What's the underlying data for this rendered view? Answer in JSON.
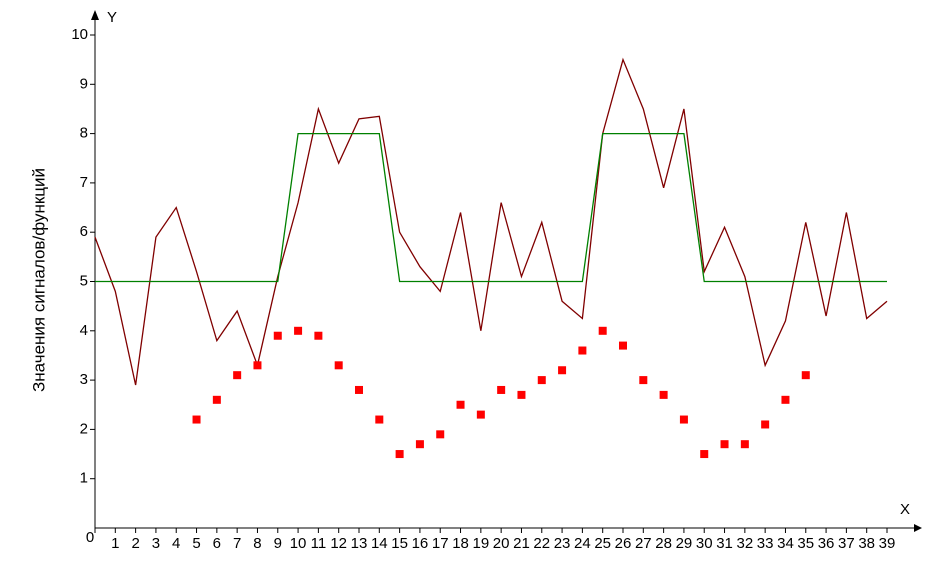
{
  "chart_data": {
    "type": "line",
    "y_label": "Значения сигналов/функций",
    "x_axis_name": "X",
    "y_axis_name": "Y",
    "x": [
      0,
      1,
      2,
      3,
      4,
      5,
      6,
      7,
      8,
      9,
      10,
      11,
      12,
      13,
      14,
      15,
      16,
      17,
      18,
      19,
      20,
      21,
      22,
      23,
      24,
      25,
      26,
      27,
      28,
      29,
      30,
      31,
      32,
      33,
      34,
      35,
      36,
      37,
      38,
      39
    ],
    "series": [
      {
        "style": "line",
        "color": "#800000",
        "values": [
          5.9,
          4.8,
          2.9,
          5.9,
          6.5,
          5.2,
          3.8,
          4.4,
          3.3,
          5.1,
          6.6,
          8.5,
          7.4,
          8.3,
          8.35,
          6.0,
          5.3,
          4.8,
          6.4,
          4.0,
          6.6,
          5.1,
          6.2,
          4.6,
          4.25,
          8.0,
          9.5,
          8.5,
          6.9,
          8.5,
          5.2,
          6.1,
          5.1,
          3.3,
          4.2,
          6.2,
          4.3,
          6.4,
          4.25,
          4.6
        ]
      },
      {
        "style": "line",
        "color": "#008000",
        "values": [
          5,
          5,
          5,
          5,
          5,
          5,
          5,
          5,
          5,
          5,
          8,
          8,
          8,
          8,
          8,
          5,
          5,
          5,
          5,
          5,
          5,
          5,
          5,
          5,
          5,
          8,
          8,
          8,
          8,
          8,
          5,
          5,
          5,
          5,
          5,
          5,
          5,
          5,
          5,
          5
        ]
      },
      {
        "style": "markers",
        "color": "#ff0000",
        "values": [
          null,
          null,
          null,
          null,
          null,
          2.2,
          2.6,
          3.1,
          3.3,
          3.9,
          4.0,
          3.9,
          3.3,
          2.8,
          2.2,
          1.5,
          1.7,
          1.9,
          2.5,
          2.3,
          2.8,
          2.7,
          3.0,
          3.2,
          3.6,
          4.0,
          3.7,
          3.0,
          2.7,
          2.2,
          1.5,
          1.7,
          1.7,
          2.1,
          2.6,
          3.1,
          null,
          null,
          null,
          null
        ]
      }
    ],
    "xlim": [
      0,
      39
    ],
    "ylim": [
      0,
      10
    ],
    "xticks": [
      0,
      1,
      2,
      3,
      4,
      5,
      6,
      7,
      8,
      9,
      10,
      11,
      12,
      13,
      14,
      15,
      16,
      17,
      18,
      19,
      20,
      21,
      22,
      23,
      24,
      25,
      26,
      27,
      28,
      29,
      30,
      31,
      32,
      33,
      34,
      35,
      36,
      37,
      38,
      39
    ],
    "yticks": [
      1,
      2,
      3,
      4,
      5,
      6,
      7,
      8,
      9,
      10
    ]
  }
}
